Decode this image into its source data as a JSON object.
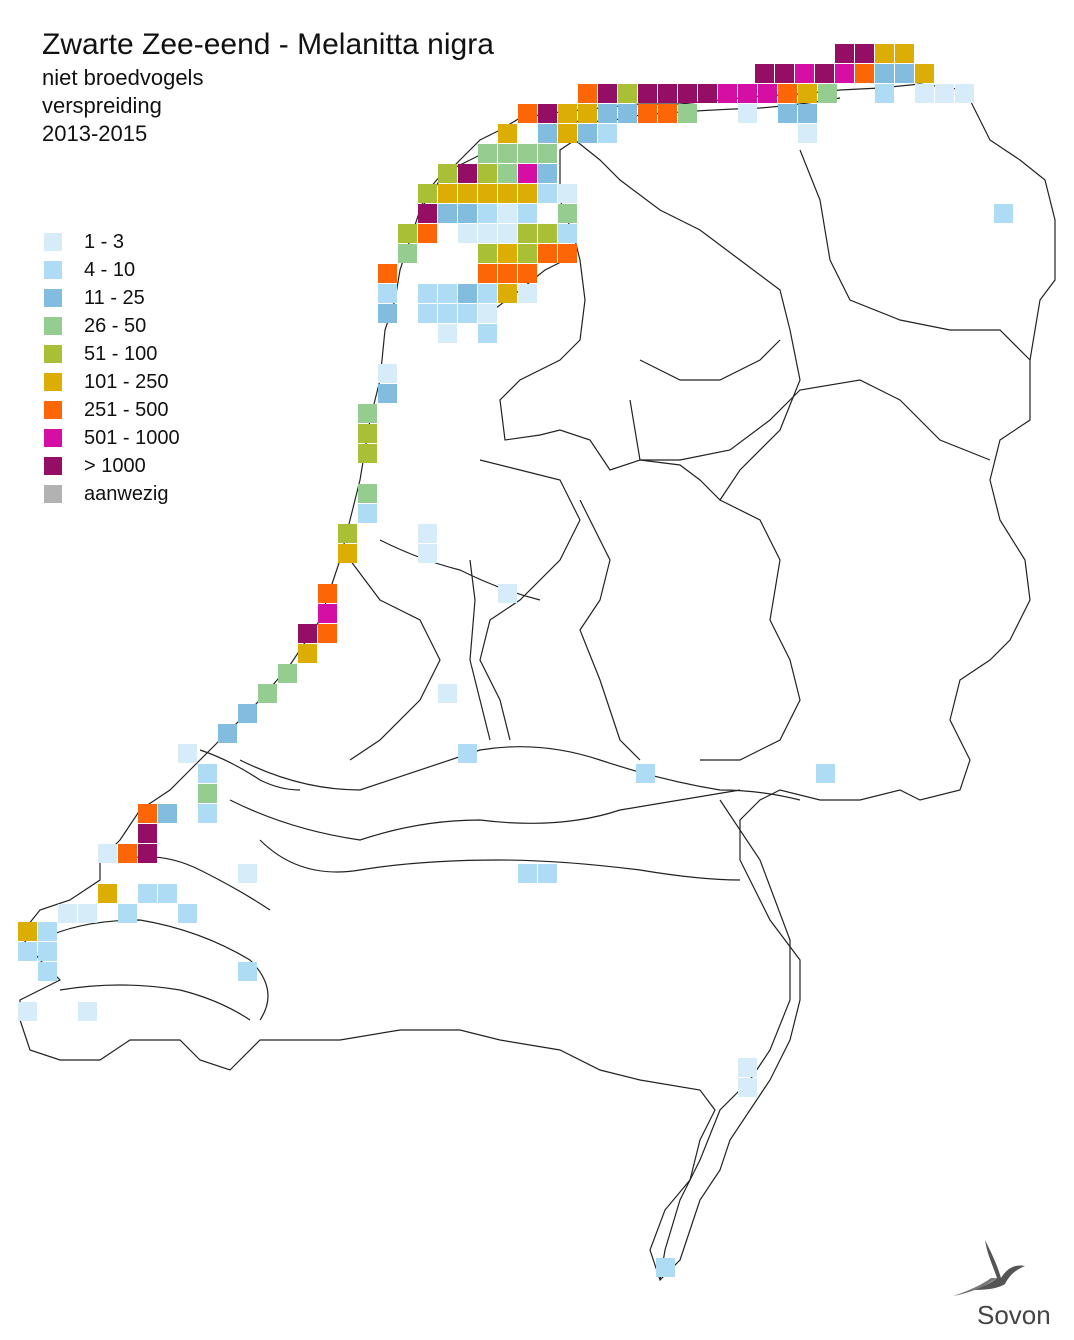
{
  "title": {
    "species": "Zwarte Zee-eend - Melanitta nigra",
    "line2": "niet broedvogels",
    "line3": "verspreiding",
    "line4": "2013-2015"
  },
  "legend": [
    {
      "label": "1 - 3",
      "color": "#d6ecf9"
    },
    {
      "label": "4 - 10",
      "color": "#aedcf5"
    },
    {
      "label": "11 - 25",
      "color": "#82bde0"
    },
    {
      "label": "26 - 50",
      "color": "#95cc90"
    },
    {
      "label": "51 - 100",
      "color": "#a9bf35"
    },
    {
      "label": "101 - 250",
      "color": "#dcad05"
    },
    {
      "label": "251 - 500",
      "color": "#fd6607"
    },
    {
      "label": "501 - 1000",
      "color": "#d50ea4"
    },
    {
      "label": "> 1000",
      "color": "#950e66"
    },
    {
      "label": "aanwezig",
      "color": "#b2b2b2"
    }
  ],
  "logo": {
    "text": "Sovon"
  },
  "cells": [
    [
      835,
      44,
      8
    ],
    [
      855,
      44,
      8
    ],
    [
      875,
      44,
      5
    ],
    [
      895,
      44,
      5
    ],
    [
      755,
      64,
      8
    ],
    [
      775,
      64,
      8
    ],
    [
      795,
      64,
      7
    ],
    [
      815,
      64,
      8
    ],
    [
      835,
      64,
      7
    ],
    [
      855,
      64,
      6
    ],
    [
      875,
      64,
      2
    ],
    [
      895,
      64,
      2
    ],
    [
      915,
      64,
      5
    ],
    [
      935,
      84,
      0
    ],
    [
      955,
      84,
      0
    ],
    [
      578,
      84,
      6
    ],
    [
      598,
      84,
      8
    ],
    [
      618,
      84,
      4
    ],
    [
      638,
      84,
      8
    ],
    [
      658,
      84,
      8
    ],
    [
      678,
      84,
      8
    ],
    [
      698,
      84,
      8
    ],
    [
      718,
      84,
      7
    ],
    [
      738,
      84,
      7
    ],
    [
      758,
      84,
      7
    ],
    [
      778,
      84,
      6
    ],
    [
      798,
      84,
      5
    ],
    [
      818,
      84,
      3
    ],
    [
      875,
      84,
      1
    ],
    [
      915,
      84,
      0
    ],
    [
      518,
      104,
      6
    ],
    [
      538,
      104,
      8
    ],
    [
      558,
      104,
      5
    ],
    [
      578,
      104,
      5
    ],
    [
      598,
      104,
      2
    ],
    [
      618,
      104,
      2
    ],
    [
      638,
      104,
      6
    ],
    [
      658,
      104,
      6
    ],
    [
      678,
      104,
      3
    ],
    [
      738,
      104,
      0
    ],
    [
      778,
      104,
      2
    ],
    [
      798,
      104,
      2
    ],
    [
      498,
      124,
      5
    ],
    [
      538,
      124,
      2
    ],
    [
      558,
      124,
      5
    ],
    [
      578,
      124,
      2
    ],
    [
      598,
      124,
      1
    ],
    [
      798,
      124,
      0
    ],
    [
      478,
      144,
      3
    ],
    [
      498,
      144,
      3
    ],
    [
      518,
      144,
      3
    ],
    [
      538,
      144,
      3
    ],
    [
      438,
      164,
      4
    ],
    [
      458,
      164,
      8
    ],
    [
      478,
      164,
      4
    ],
    [
      498,
      164,
      3
    ],
    [
      518,
      164,
      7
    ],
    [
      538,
      164,
      2
    ],
    [
      418,
      184,
      4
    ],
    [
      438,
      184,
      5
    ],
    [
      458,
      184,
      5
    ],
    [
      478,
      184,
      5
    ],
    [
      498,
      184,
      5
    ],
    [
      518,
      184,
      5
    ],
    [
      538,
      184,
      1
    ],
    [
      558,
      184,
      0
    ],
    [
      418,
      204,
      8
    ],
    [
      438,
      204,
      2
    ],
    [
      458,
      204,
      2
    ],
    [
      478,
      204,
      1
    ],
    [
      498,
      204,
      0
    ],
    [
      518,
      204,
      1
    ],
    [
      558,
      204,
      3
    ],
    [
      398,
      224,
      4
    ],
    [
      418,
      224,
      6
    ],
    [
      458,
      224,
      0
    ],
    [
      478,
      224,
      0
    ],
    [
      498,
      224,
      0
    ],
    [
      518,
      224,
      4
    ],
    [
      538,
      224,
      4
    ],
    [
      558,
      224,
      1
    ],
    [
      398,
      244,
      3
    ],
    [
      478,
      244,
      4
    ],
    [
      498,
      244,
      5
    ],
    [
      518,
      244,
      4
    ],
    [
      538,
      244,
      6
    ],
    [
      558,
      244,
      6
    ],
    [
      378,
      264,
      6
    ],
    [
      478,
      264,
      6
    ],
    [
      498,
      264,
      6
    ],
    [
      518,
      264,
      6
    ],
    [
      378,
      284,
      1
    ],
    [
      418,
      284,
      1
    ],
    [
      438,
      284,
      1
    ],
    [
      458,
      284,
      2
    ],
    [
      478,
      284,
      1
    ],
    [
      498,
      284,
      5
    ],
    [
      518,
      284,
      0
    ],
    [
      378,
      304,
      2
    ],
    [
      418,
      304,
      1
    ],
    [
      438,
      304,
      1
    ],
    [
      458,
      304,
      1
    ],
    [
      478,
      304,
      0
    ],
    [
      438,
      324,
      0
    ],
    [
      478,
      324,
      1
    ],
    [
      378,
      364,
      0
    ],
    [
      378,
      384,
      2
    ],
    [
      358,
      404,
      3
    ],
    [
      358,
      424,
      4
    ],
    [
      358,
      444,
      4
    ],
    [
      358,
      484,
      3
    ],
    [
      358,
      504,
      1
    ],
    [
      418,
      524,
      0
    ],
    [
      338,
      524,
      4
    ],
    [
      338,
      544,
      5
    ],
    [
      418,
      544,
      0
    ],
    [
      498,
      584,
      0
    ],
    [
      318,
      584,
      6
    ],
    [
      318,
      604,
      7
    ],
    [
      298,
      624,
      8
    ],
    [
      318,
      624,
      6
    ],
    [
      298,
      644,
      5
    ],
    [
      278,
      664,
      3
    ],
    [
      258,
      684,
      3
    ],
    [
      438,
      684,
      0
    ],
    [
      238,
      704,
      2
    ],
    [
      218,
      724,
      2
    ],
    [
      178,
      744,
      0
    ],
    [
      458,
      744,
      1
    ],
    [
      198,
      764,
      1
    ],
    [
      636,
      764,
      1
    ],
    [
      816,
      764,
      1
    ],
    [
      198,
      784,
      3
    ],
    [
      198,
      804,
      1
    ],
    [
      138,
      804,
      6
    ],
    [
      158,
      804,
      2
    ],
    [
      138,
      824,
      8
    ],
    [
      118,
      844,
      6
    ],
    [
      138,
      844,
      8
    ],
    [
      98,
      844,
      0
    ],
    [
      238,
      864,
      0
    ],
    [
      518,
      864,
      1
    ],
    [
      538,
      864,
      1
    ],
    [
      98,
      884,
      5
    ],
    [
      138,
      884,
      1
    ],
    [
      158,
      884,
      1
    ],
    [
      58,
      904,
      0
    ],
    [
      78,
      904,
      0
    ],
    [
      118,
      904,
      1
    ],
    [
      178,
      904,
      1
    ],
    [
      18,
      922,
      5
    ],
    [
      38,
      922,
      1
    ],
    [
      18,
      942,
      1
    ],
    [
      38,
      942,
      1
    ],
    [
      38,
      962,
      1
    ],
    [
      238,
      962,
      1
    ],
    [
      18,
      1002,
      0
    ],
    [
      78,
      1002,
      0
    ],
    [
      738,
      1058,
      0
    ],
    [
      738,
      1078,
      0
    ],
    [
      656,
      1258,
      1
    ],
    [
      994,
      204,
      1
    ]
  ]
}
